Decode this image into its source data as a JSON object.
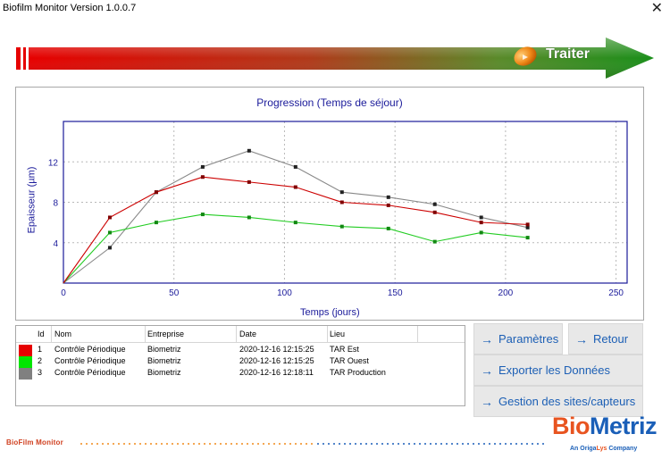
{
  "window": {
    "title": "Biofilm Monitor Version 1.0.0.7",
    "close_glyph": "✕"
  },
  "banner": {
    "button_label": "Traiter",
    "gradient": [
      "#e60000",
      "#1a8f1a"
    ]
  },
  "chart_data": {
    "type": "line",
    "title": "Progression (Temps de séjour)",
    "xlabel": "Temps (jours)",
    "ylabel": "Epaisseur (µm)",
    "xlim": [
      0,
      255
    ],
    "ylim": [
      0,
      16
    ],
    "xticks": [
      0,
      50,
      100,
      150,
      200,
      250
    ],
    "yticks": [
      4,
      8,
      12
    ],
    "grid": true,
    "series": [
      {
        "color": "#cc0000",
        "x": [
          0,
          21,
          42,
          63,
          84,
          105,
          126,
          147,
          168,
          189,
          210
        ],
        "y": [
          0,
          6.5,
          9,
          10.5,
          10,
          9.5,
          8,
          7.7,
          7,
          6,
          5.8
        ]
      },
      {
        "color": "#22cc22",
        "x": [
          0,
          21,
          42,
          63,
          84,
          105,
          126,
          147,
          168,
          189,
          210
        ],
        "y": [
          0,
          5,
          6,
          6.8,
          6.5,
          6,
          5.6,
          5.4,
          4.1,
          5,
          4.5
        ]
      },
      {
        "color": "#888888",
        "x": [
          0,
          21,
          42,
          63,
          84,
          105,
          126,
          147,
          168,
          189,
          210
        ],
        "y": [
          0,
          3.5,
          9,
          11.5,
          13.1,
          11.5,
          9,
          8.5,
          7.8,
          6.5,
          5.5
        ]
      }
    ]
  },
  "table": {
    "headers": {
      "id": "Id",
      "nom": "Nom",
      "entreprise": "Entreprise",
      "date": "Date",
      "lieu": "Lieu"
    },
    "rows": [
      {
        "color": "#e60000",
        "id": "1",
        "nom": "Contrôle Périodique",
        "entreprise": "Biometriz",
        "date": "2020-12-16 12:15:25",
        "lieu": "TAR Est"
      },
      {
        "color": "#00e600",
        "id": "2",
        "nom": "Contrôle Périodique",
        "entreprise": "Biometriz",
        "date": "2020-12-16 12:15:25",
        "lieu": "TAR Ouest"
      },
      {
        "color": "#808080",
        "id": "3",
        "nom": "Contrôle Périodique",
        "entreprise": "Biometriz",
        "date": "2020-12-16 12:18:11",
        "lieu": "TAR Production"
      }
    ]
  },
  "buttons": {
    "arrow": "→",
    "parametres": "Paramètres",
    "retour": "Retour",
    "exporter": "Exporter les Données",
    "gestion": "Gestion des sites/capteurs"
  },
  "footer": {
    "app_name": "BioFilm Monitor",
    "logo_bio": "Bio",
    "logo_metriz": "Metriz",
    "tagline_pre": "An Origa",
    "tagline_ol": "Lys",
    "tagline_post": " Company"
  }
}
